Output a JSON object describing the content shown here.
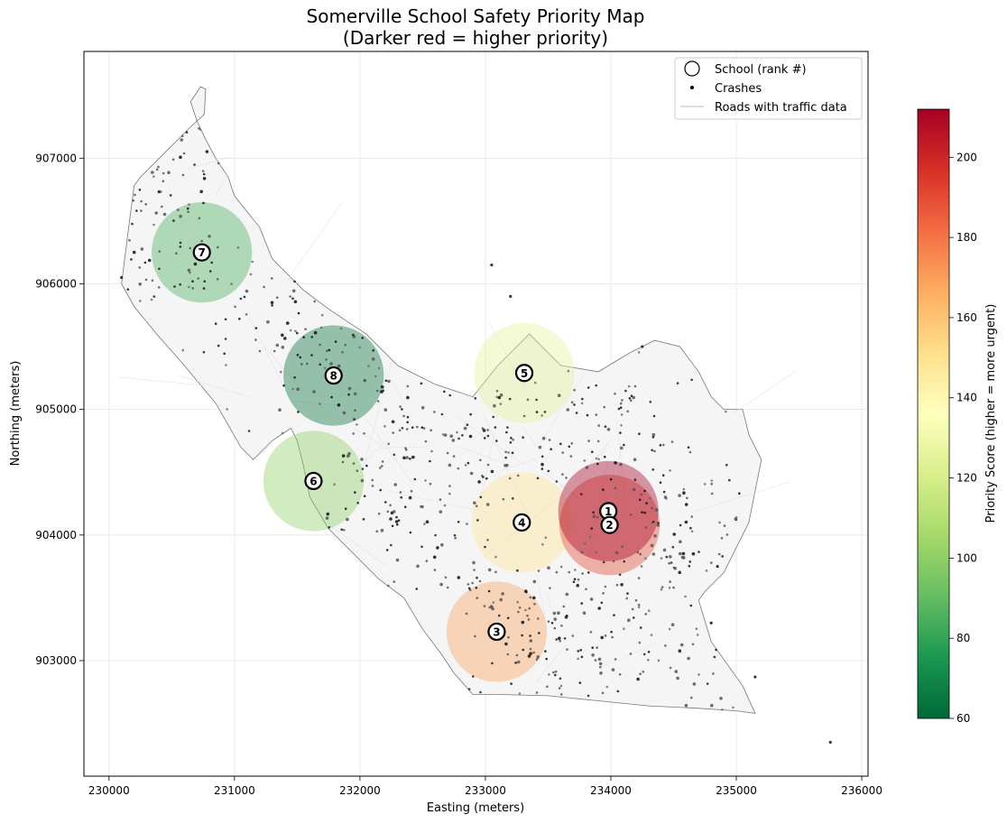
{
  "chart_data": {
    "type": "scatter",
    "title": "Somerville School Safety Priority Map",
    "subtitle": "(Darker red = higher priority)",
    "xlabel": "Easting (meters)",
    "ylabel": "Northing (meters)",
    "xlim": [
      229800,
      236050
    ],
    "ylim": [
      902080,
      907850
    ],
    "x_ticks": [
      230000,
      231000,
      232000,
      233000,
      234000,
      235000,
      236000
    ],
    "y_ticks": [
      903000,
      904000,
      905000,
      906000,
      907000
    ],
    "grid": true,
    "legend": {
      "placement": "top-right",
      "entries": [
        "School (rank #)",
        "Crashes",
        "Roads with traffic data"
      ]
    },
    "colorbar": {
      "label": "Priority Score (higher = more urgent)",
      "range": [
        60,
        212
      ],
      "ticks": [
        60,
        80,
        100,
        120,
        140,
        160,
        180,
        200
      ],
      "colormap": "RdYlGn_r"
    },
    "boundary": [
      [
        230730,
        907570
      ],
      [
        230770,
        907550
      ],
      [
        230760,
        907350
      ],
      [
        230650,
        907250
      ],
      [
        230450,
        907050
      ],
      [
        230250,
        906850
      ],
      [
        230200,
        906780
      ],
      [
        230150,
        906400
      ],
      [
        230100,
        906000
      ],
      [
        230200,
        905820
      ],
      [
        230380,
        905600
      ],
      [
        230600,
        905350
      ],
      [
        230850,
        905050
      ],
      [
        231050,
        904700
      ],
      [
        231150,
        904600
      ],
      [
        231300,
        904750
      ],
      [
        231450,
        904850
      ],
      [
        231500,
        904750
      ],
      [
        231550,
        904550
      ],
      [
        231600,
        904300
      ],
      [
        231750,
        904050
      ],
      [
        231950,
        903850
      ],
      [
        232150,
        903650
      ],
      [
        232350,
        903500
      ],
      [
        232500,
        903250
      ],
      [
        232650,
        903050
      ],
      [
        232750,
        902900
      ],
      [
        232900,
        902730
      ],
      [
        233100,
        902730
      ],
      [
        233500,
        902720
      ],
      [
        233900,
        902680
      ],
      [
        234300,
        902640
      ],
      [
        234700,
        902620
      ],
      [
        235000,
        902600
      ],
      [
        235150,
        902580
      ],
      [
        235050,
        902800
      ],
      [
        234800,
        903150
      ],
      [
        234700,
        903480
      ],
      [
        234750,
        903550
      ],
      [
        234900,
        903700
      ],
      [
        235100,
        904100
      ],
      [
        235200,
        904600
      ],
      [
        235100,
        904800
      ],
      [
        235050,
        905000
      ],
      [
        234900,
        905000
      ],
      [
        234800,
        905100
      ],
      [
        234700,
        905300
      ],
      [
        234550,
        905500
      ],
      [
        234350,
        905550
      ],
      [
        234150,
        905450
      ],
      [
        233900,
        905300
      ],
      [
        233600,
        905350
      ],
      [
        233350,
        905600
      ],
      [
        233100,
        905350
      ],
      [
        232900,
        905100
      ],
      [
        232600,
        905200
      ],
      [
        232300,
        905350
      ],
      [
        232050,
        905600
      ],
      [
        231750,
        905800
      ],
      [
        231550,
        905950
      ],
      [
        231300,
        906200
      ],
      [
        231200,
        906450
      ],
      [
        231000,
        906700
      ],
      [
        230950,
        906850
      ],
      [
        230850,
        907000
      ],
      [
        230770,
        907150
      ],
      [
        230700,
        907300
      ],
      [
        230650,
        907450
      ]
    ],
    "schools": [
      {
        "rank": 1,
        "label": "1",
        "x": 233980,
        "y": 904190,
        "score": 212
      },
      {
        "rank": 2,
        "label": "2",
        "x": 233990,
        "y": 904080,
        "score": 192
      },
      {
        "rank": 3,
        "label": "3",
        "x": 233090,
        "y": 903230,
        "score": 170
      },
      {
        "rank": 4,
        "label": "4",
        "x": 233290,
        "y": 904100,
        "score": 148
      },
      {
        "rank": 5,
        "label": "5",
        "x": 233310,
        "y": 905290,
        "score": 124
      },
      {
        "rank": 6,
        "label": "6",
        "x": 231630,
        "y": 904430,
        "score": 100
      },
      {
        "rank": 7,
        "label": "7",
        "x": 230740,
        "y": 906250,
        "score": 84
      },
      {
        "rank": 8,
        "label": "8",
        "x": 231790,
        "y": 905270,
        "score": 62
      }
    ],
    "crash_clusters": [
      {
        "x": 230330,
        "y": 907200
      },
      {
        "x": 230600,
        "y": 906900
      },
      {
        "x": 230450,
        "y": 906300
      },
      {
        "x": 231300,
        "y": 905700
      },
      {
        "x": 231800,
        "y": 905300
      },
      {
        "x": 232300,
        "y": 904900
      },
      {
        "x": 232800,
        "y": 904600
      },
      {
        "x": 233300,
        "y": 904800
      },
      {
        "x": 233900,
        "y": 904900
      },
      {
        "x": 234200,
        "y": 904400
      },
      {
        "x": 234600,
        "y": 904100
      },
      {
        "x": 234200,
        "y": 903600
      },
      {
        "x": 233700,
        "y": 903300
      },
      {
        "x": 233300,
        "y": 903400
      },
      {
        "x": 232600,
        "y": 903900
      },
      {
        "x": 231900,
        "y": 904300
      },
      {
        "x": 233600,
        "y": 902900
      },
      {
        "x": 234500,
        "y": 902800
      }
    ],
    "crash_points_isolated": [
      {
        "x": 233050,
        "y": 906150
      },
      {
        "x": 235750,
        "y": 902350
      },
      {
        "x": 235150,
        "y": 902870
      },
      {
        "x": 234850,
        "y": 903750
      },
      {
        "x": 234800,
        "y": 903300
      },
      {
        "x": 230100,
        "y": 906050
      },
      {
        "x": 233200,
        "y": 905900
      },
      {
        "x": 234250,
        "y": 905500
      }
    ]
  }
}
